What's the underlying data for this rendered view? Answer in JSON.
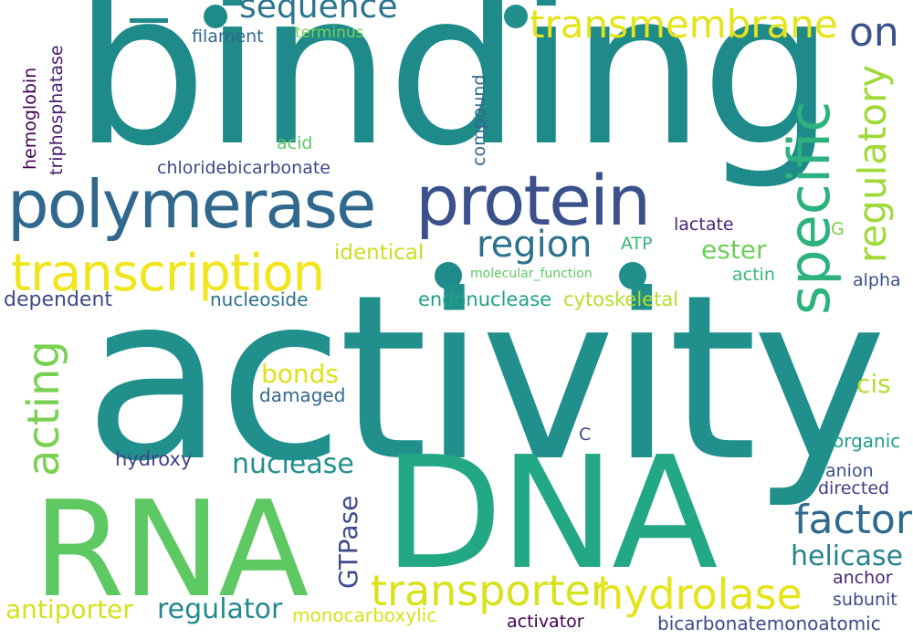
{
  "words": [
    {
      "text": "activity",
      "color": "#21908d"
    },
    {
      "text": "binding",
      "color": "#1f8a8a"
    },
    {
      "text": "DNA",
      "color": "#22a884"
    },
    {
      "text": "RNA",
      "color": "#5ec962"
    },
    {
      "text": "polymerase",
      "color": "#31688e"
    },
    {
      "text": "protein",
      "color": "#3b518b"
    },
    {
      "text": "transcription",
      "color": "#f1e51d"
    },
    {
      "text": "specific",
      "color": "#2db27d"
    },
    {
      "text": "transmembrane",
      "color": "#e5e419"
    },
    {
      "text": "regulatory",
      "color": "#a0da39"
    },
    {
      "text": "transporter",
      "color": "#d8e219"
    },
    {
      "text": "hydrolase",
      "color": "#e5e419"
    },
    {
      "text": "factor",
      "color": "#30698e"
    },
    {
      "text": "acting",
      "color": "#7ad151"
    },
    {
      "text": "sequence",
      "color": "#2a768e"
    },
    {
      "text": "region",
      "color": "#2c728e"
    },
    {
      "text": "on",
      "color": "#3b528b"
    },
    {
      "text": "helicase",
      "color": "#26828e"
    },
    {
      "text": "regulator",
      "color": "#23898e"
    },
    {
      "text": "antiporter",
      "color": "#d2e21b"
    },
    {
      "text": "nuclease",
      "color": "#218f8d"
    },
    {
      "text": "GTPase",
      "color": "#3e4a89"
    },
    {
      "text": "monocarboxylic",
      "color": "#d8e219"
    },
    {
      "text": "bonds",
      "color": "#dde318"
    },
    {
      "text": "ester",
      "color": "#6ece58"
    },
    {
      "text": "cis",
      "color": "#b5de2b"
    },
    {
      "text": "endonuclease",
      "color": "#1fa187"
    },
    {
      "text": "cytoskeletal",
      "color": "#b5de2b"
    },
    {
      "text": "identical",
      "color": "#c8e020"
    },
    {
      "text": "dependent",
      "color": "#3e4a89"
    },
    {
      "text": "nucleoside",
      "color": "#2c728e"
    },
    {
      "text": "damaged",
      "color": "#31688e"
    },
    {
      "text": "hydroxy",
      "color": "#414487"
    },
    {
      "text": "organic",
      "color": "#1fa088"
    },
    {
      "text": "anion",
      "color": "#3b528b"
    },
    {
      "text": "directed",
      "color": "#433e85"
    },
    {
      "text": "anchor",
      "color": "#482878"
    },
    {
      "text": "subunit",
      "color": "#3e4a89"
    },
    {
      "text": "bicarbonatemonoatomic",
      "color": "#3e4a89"
    },
    {
      "text": "activator",
      "color": "#440154"
    },
    {
      "text": "alpha",
      "color": "#3b528b"
    },
    {
      "text": "actin",
      "color": "#37b878"
    },
    {
      "text": "lactate",
      "color": "#482475"
    },
    {
      "text": "ATP",
      "color": "#35b779"
    },
    {
      "text": "G",
      "color": "#7ad151"
    },
    {
      "text": "C",
      "color": "#3e4a89"
    },
    {
      "text": "molecular_function",
      "color": "#5ec962"
    },
    {
      "text": "chloridebicarbonate",
      "color": "#3e4a89"
    },
    {
      "text": "acid",
      "color": "#5ec962"
    },
    {
      "text": "compound",
      "color": "#31688e"
    },
    {
      "text": "filament",
      "color": "#31688e"
    },
    {
      "text": "terminus",
      "color": "#7ad151"
    },
    {
      "text": "hemoglobin",
      "color": "#440154"
    },
    {
      "text": "triphosphatase",
      "color": "#481a6c"
    }
  ]
}
